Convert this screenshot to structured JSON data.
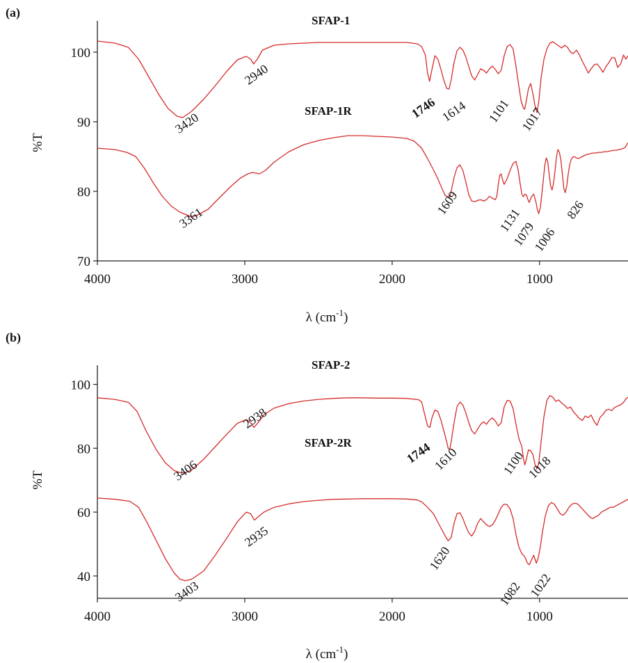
{
  "chart_data": [
    {
      "panel_label": "(a)",
      "type": "line",
      "xlabel": "λ (cm",
      "xlabel_sup": "-1",
      "xlabel_close": ")",
      "ylabel": "%T",
      "xlim": [
        4000,
        400
      ],
      "ylim": [
        70,
        104.5
      ],
      "xticks": [
        4000,
        3000,
        2000,
        1000
      ],
      "yticks": [
        70,
        80,
        90,
        100
      ],
      "grid": false,
      "color": "#d42a2a",
      "series": [
        {
          "name": "SFAP-1",
          "x": [
            4000,
            3880,
            3790,
            3720,
            3650,
            3580,
            3520,
            3460,
            3420,
            3360,
            3280,
            3200,
            3120,
            3050,
            2990,
            2960,
            2940,
            2915,
            2880,
            2800,
            2700,
            2600,
            2500,
            2400,
            2300,
            2200,
            2100,
            2000,
            1900,
            1830,
            1800,
            1775,
            1760,
            1746,
            1730,
            1710,
            1690,
            1670,
            1650,
            1630,
            1614,
            1600,
            1580,
            1560,
            1540,
            1520,
            1500,
            1480,
            1460,
            1440,
            1420,
            1400,
            1380,
            1360,
            1340,
            1320,
            1300,
            1280,
            1260,
            1240,
            1220,
            1200,
            1180,
            1160,
            1140,
            1125,
            1110,
            1101,
            1090,
            1075,
            1060,
            1045,
            1030,
            1017,
            1005,
            990,
            970,
            950,
            930,
            910,
            890,
            870,
            850,
            830,
            810,
            790,
            770,
            750,
            730,
            710,
            690,
            670,
            650,
            630,
            610,
            590,
            570,
            550,
            530,
            510,
            490,
            470,
            450,
            430,
            415,
            400
          ],
          "y": [
            101.6,
            101.3,
            100.7,
            99.0,
            96.4,
            93.8,
            91.9,
            90.8,
            90.6,
            91.5,
            93.2,
            95.2,
            97.3,
            98.9,
            99.4,
            99.0,
            98.3,
            99.0,
            100.3,
            101.0,
            101.2,
            101.3,
            101.4,
            101.4,
            101.4,
            101.4,
            101.4,
            101.4,
            101.4,
            101.2,
            100.8,
            99.6,
            97.0,
            95.8,
            97.5,
            99.5,
            99.0,
            97.6,
            96.0,
            94.8,
            94.7,
            96.0,
            98.5,
            100.2,
            100.7,
            100.3,
            99.3,
            97.9,
            96.6,
            96.0,
            96.8,
            97.6,
            97.4,
            97.0,
            97.6,
            98.0,
            97.5,
            96.9,
            97.4,
            99.5,
            100.8,
            101.1,
            100.5,
            98.0,
            95.0,
            93.0,
            92.0,
            91.8,
            93.0,
            94.8,
            95.5,
            94.0,
            92.2,
            91.3,
            93.0,
            96.3,
            99.0,
            100.5,
            101.3,
            101.5,
            101.2,
            100.9,
            100.6,
            101.0,
            100.7,
            100.0,
            99.8,
            100.3,
            99.6,
            98.7,
            97.9,
            97.0,
            97.6,
            98.2,
            98.3,
            97.8,
            97.1,
            97.9,
            98.5,
            99.2,
            99.2,
            97.8,
            98.3,
            99.6,
            99.0,
            99.5
          ]
        },
        {
          "name": "SFAP-1R",
          "x": [
            4000,
            3880,
            3800,
            3740,
            3680,
            3620,
            3560,
            3500,
            3440,
            3380,
            3361,
            3320,
            3250,
            3180,
            3100,
            3030,
            2980,
            2950,
            2920,
            2900,
            2860,
            2800,
            2700,
            2600,
            2500,
            2400,
            2300,
            2200,
            2100,
            2000,
            1900,
            1850,
            1800,
            1760,
            1720,
            1690,
            1660,
            1640,
            1620,
            1609,
            1600,
            1580,
            1560,
            1540,
            1520,
            1500,
            1480,
            1460,
            1440,
            1420,
            1400,
            1380,
            1360,
            1340,
            1320,
            1300,
            1290,
            1280,
            1270,
            1260,
            1250,
            1240,
            1220,
            1200,
            1180,
            1160,
            1145,
            1131,
            1120,
            1110,
            1100,
            1090,
            1079,
            1070,
            1055,
            1040,
            1025,
            1015,
            1006,
            995,
            985,
            975,
            965,
            955,
            945,
            935,
            925,
            915,
            905,
            895,
            885,
            875,
            865,
            855,
            845,
            835,
            826,
            815,
            805,
            795,
            785,
            775,
            765,
            750,
            735,
            720,
            700,
            680,
            660,
            640,
            620,
            600,
            580,
            560,
            540,
            520,
            500,
            480,
            460,
            440,
            420,
            400
          ],
          "y": [
            86.2,
            86.0,
            85.6,
            85.0,
            83.3,
            81.2,
            79.3,
            77.9,
            77.0,
            76.5,
            76.3,
            76.6,
            77.4,
            78.9,
            80.6,
            81.9,
            82.5,
            82.7,
            82.6,
            82.5,
            83.0,
            84.2,
            85.7,
            86.7,
            87.3,
            87.7,
            88.0,
            88.0,
            87.9,
            87.8,
            87.6,
            87.2,
            86.2,
            84.7,
            83.1,
            81.8,
            80.3,
            79.4,
            79.2,
            79.3,
            80.0,
            82.0,
            83.4,
            83.8,
            83.0,
            81.3,
            79.5,
            78.6,
            78.5,
            78.7,
            78.8,
            78.6,
            78.8,
            79.3,
            79.0,
            78.8,
            79.3,
            81.0,
            82.3,
            82.5,
            81.6,
            81.0,
            81.8,
            83.0,
            84.0,
            84.3,
            83.0,
            81.0,
            79.6,
            79.2,
            79.6,
            79.5,
            78.8,
            78.4,
            79.2,
            79.6,
            78.5,
            77.4,
            76.8,
            77.6,
            79.5,
            81.5,
            83.7,
            84.8,
            84.3,
            82.5,
            80.8,
            80.2,
            81.2,
            83.0,
            85.0,
            86.0,
            85.6,
            84.4,
            82.4,
            80.4,
            79.8,
            80.8,
            82.6,
            83.9,
            84.6,
            84.9,
            85.0,
            84.8,
            84.7,
            84.9,
            85.1,
            85.3,
            85.4,
            85.5,
            85.5,
            85.6,
            85.6,
            85.7,
            85.7,
            85.8,
            85.9,
            85.9,
            86.0,
            86.1,
            86.3,
            87.0
          ]
        }
      ],
      "annotations": [
        {
          "text": "SFAP-1",
          "bold": true
        },
        {
          "text": "SFAP-1R",
          "bold": true
        },
        {
          "text": "3420"
        },
        {
          "text": "2940"
        },
        {
          "text": "1746",
          "bold": true
        },
        {
          "text": "1614"
        },
        {
          "text": "1101"
        },
        {
          "text": "1017"
        },
        {
          "text": "3361"
        },
        {
          "text": "1609"
        },
        {
          "text": "1131"
        },
        {
          "text": "1079"
        },
        {
          "text": "1006"
        },
        {
          "text": "826"
        }
      ]
    },
    {
      "panel_label": "(b)",
      "type": "line",
      "xlabel": "λ (cm",
      "xlabel_sup": "-1",
      "xlabel_close": ")",
      "ylabel": "%T",
      "xlim": [
        4000,
        400
      ],
      "ylim": [
        33,
        106
      ],
      "xticks": [
        4000,
        3000,
        2000,
        1000
      ],
      "yticks": [
        40,
        60,
        80,
        100
      ],
      "grid": false,
      "color": "#d42a2a",
      "series": [
        {
          "name": "SFAP-2",
          "x": [
            4000,
            3880,
            3790,
            3730,
            3670,
            3600,
            3540,
            3480,
            3440,
            3406,
            3360,
            3280,
            3200,
            3120,
            3050,
            2990,
            2960,
            2938,
            2910,
            2870,
            2800,
            2700,
            2600,
            2500,
            2400,
            2300,
            2200,
            2100,
            2000,
            1900,
            1820,
            1800,
            1780,
            1760,
            1744,
            1730,
            1710,
            1690,
            1670,
            1650,
            1630,
            1620,
            1610,
            1600,
            1580,
            1560,
            1540,
            1520,
            1500,
            1480,
            1460,
            1440,
            1420,
            1400,
            1380,
            1360,
            1340,
            1320,
            1300,
            1280,
            1260,
            1240,
            1220,
            1200,
            1180,
            1160,
            1140,
            1120,
            1110,
            1100,
            1090,
            1075,
            1060,
            1045,
            1030,
            1018,
            1005,
            990,
            970,
            950,
            930,
            910,
            890,
            870,
            850,
            830,
            810,
            790,
            770,
            750,
            730,
            710,
            690,
            670,
            650,
            630,
            610,
            590,
            570,
            550,
            530,
            510,
            490,
            470,
            450,
            430,
            415,
            400
          ],
          "y": [
            95.8,
            95.3,
            94.4,
            91.5,
            85.5,
            79.5,
            75.5,
            73.0,
            72.4,
            72.3,
            73.2,
            76.5,
            80.5,
            84.5,
            87.8,
            89.0,
            88.0,
            86.5,
            88.0,
            90.5,
            92.6,
            94.0,
            94.8,
            95.3,
            95.6,
            95.8,
            95.8,
            95.7,
            95.7,
            95.6,
            95.2,
            94.5,
            90.8,
            87.0,
            86.5,
            89.5,
            92.0,
            91.5,
            89.0,
            85.5,
            82.0,
            80.0,
            79.5,
            82.0,
            88.0,
            93.0,
            94.5,
            93.5,
            91.0,
            88.0,
            85.5,
            84.5,
            86.0,
            87.5,
            88.3,
            87.5,
            88.8,
            89.5,
            88.5,
            87.0,
            88.0,
            93.0,
            95.0,
            94.8,
            92.5,
            87.5,
            83.0,
            80.5,
            77.0,
            74.8,
            76.5,
            79.5,
            79.2,
            78.0,
            74.8,
            73.5,
            75.5,
            82.0,
            90.0,
            95.0,
            96.5,
            96.0,
            94.7,
            95.1,
            94.2,
            93.4,
            92.5,
            92.9,
            91.4,
            90.4,
            89.3,
            88.7,
            90.1,
            89.6,
            90.4,
            88.4,
            87.2,
            89.6,
            90.6,
            91.9,
            92.2,
            91.8,
            92.8,
            93.2,
            93.6,
            94.4,
            95.4,
            96.0
          ]
        },
        {
          "name": "SFAP-2R",
          "x": [
            4000,
            3880,
            3780,
            3720,
            3660,
            3600,
            3540,
            3480,
            3440,
            3403,
            3360,
            3280,
            3200,
            3120,
            3050,
            2990,
            2960,
            2935,
            2910,
            2870,
            2800,
            2700,
            2600,
            2500,
            2400,
            2300,
            2200,
            2100,
            2000,
            1900,
            1830,
            1800,
            1760,
            1720,
            1680,
            1640,
            1620,
            1600,
            1580,
            1560,
            1540,
            1520,
            1500,
            1480,
            1460,
            1440,
            1420,
            1400,
            1380,
            1360,
            1340,
            1320,
            1300,
            1280,
            1260,
            1240,
            1220,
            1200,
            1180,
            1160,
            1140,
            1120,
            1100,
            1082,
            1070,
            1055,
            1040,
            1022,
            1010,
            995,
            980,
            960,
            940,
            920,
            900,
            880,
            860,
            840,
            820,
            800,
            780,
            760,
            740,
            720,
            700,
            680,
            660,
            640,
            620,
            600,
            580,
            560,
            540,
            520,
            500,
            480,
            460,
            440,
            420,
            400
          ],
          "y": [
            64.4,
            64.0,
            63.4,
            61.5,
            56.5,
            51.0,
            45.5,
            41.0,
            39.0,
            38.5,
            39.0,
            41.5,
            46.5,
            52.0,
            57.0,
            60.0,
            59.5,
            57.5,
            58.5,
            60.0,
            61.5,
            62.6,
            63.3,
            63.7,
            64.0,
            64.1,
            64.2,
            64.2,
            64.2,
            64.1,
            63.8,
            63.2,
            61.5,
            59.5,
            56.0,
            52.5,
            51.0,
            52.0,
            56.5,
            59.5,
            59.8,
            58.0,
            55.5,
            53.5,
            52.5,
            54.0,
            56.5,
            58.0,
            57.0,
            56.0,
            55.5,
            56.0,
            57.5,
            59.5,
            61.5,
            62.5,
            62.3,
            61.0,
            58.0,
            53.0,
            49.0,
            47.0,
            46.0,
            44.0,
            43.5,
            45.0,
            46.5,
            44.0,
            45.5,
            49.0,
            54.0,
            59.0,
            62.0,
            63.0,
            62.5,
            61.0,
            59.5,
            59.0,
            60.0,
            61.5,
            62.5,
            62.8,
            62.5,
            61.5,
            60.5,
            59.5,
            58.5,
            58.0,
            58.5,
            59.0,
            60.0,
            60.5,
            61.0,
            61.5,
            61.5,
            62.0,
            62.5,
            63.0,
            63.5,
            64.0
          ]
        }
      ],
      "annotations": [
        {
          "text": "SFAP-2",
          "bold": true
        },
        {
          "text": "SFAP-2R",
          "bold": true
        },
        {
          "text": "3406"
        },
        {
          "text": "2938"
        },
        {
          "text": "1744",
          "bold": true
        },
        {
          "text": "1610"
        },
        {
          "text": "1100"
        },
        {
          "text": "1018"
        },
        {
          "text": "3403"
        },
        {
          "text": "2935"
        },
        {
          "text": "1620"
        },
        {
          "text": "1082"
        },
        {
          "text": "1022"
        }
      ]
    }
  ]
}
